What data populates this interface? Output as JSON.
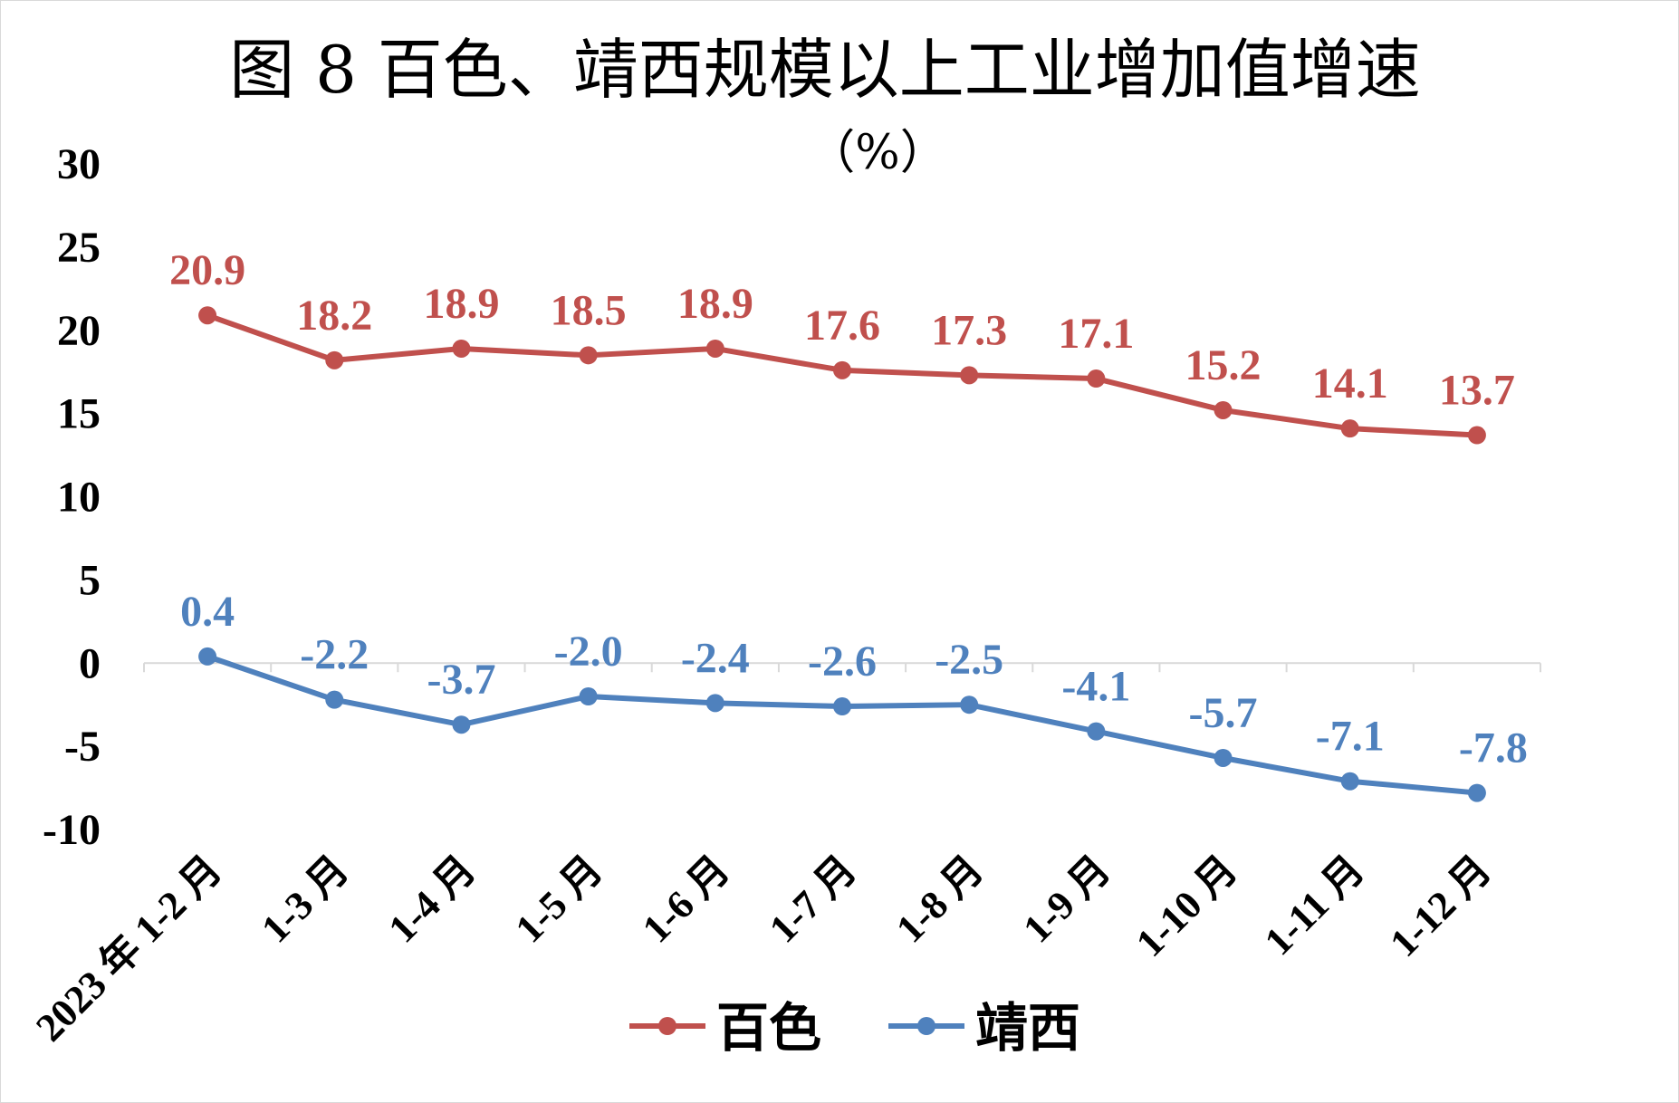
{
  "chart_data": {
    "type": "line",
    "title": "图 8  百色、靖西规模以上工业增加值增速",
    "subtitle": "（%）",
    "categories": [
      "2023 年 1-2 月",
      "1-3 月",
      "1-4 月",
      "1-5 月",
      "1-6 月",
      "1-7 月",
      "1-8 月",
      "1-9 月",
      "1-10 月",
      "1-11 月",
      "1-12 月"
    ],
    "series": [
      {
        "name": "百色",
        "color": "#c0504d",
        "values": [
          20.9,
          18.2,
          18.9,
          18.5,
          18.9,
          17.6,
          17.3,
          17.1,
          15.2,
          14.1,
          13.7
        ],
        "labels": [
          "20.9",
          "18.2",
          "18.9",
          "18.5",
          "18.9",
          "17.6",
          "17.3",
          "17.1",
          "15.2",
          "14.1",
          "13.7"
        ]
      },
      {
        "name": "靖西",
        "color": "#4f81bd",
        "values": [
          0.4,
          -2.2,
          -3.7,
          -2.0,
          -2.4,
          -2.6,
          -2.5,
          -4.1,
          -5.7,
          -7.1,
          -7.8
        ],
        "labels": [
          "0.4",
          "-2.2",
          "-3.7",
          "-2.0",
          "-2.4",
          "-2.6",
          "-2.5",
          "-4.1",
          "-5.7",
          "-7.1",
          "-7.8"
        ]
      }
    ],
    "ylim": [
      -10,
      30
    ],
    "yticks": [
      "30",
      "25",
      "20",
      "15",
      "10",
      "5",
      "0",
      "-5",
      "-10"
    ],
    "ytick_values": [
      30,
      25,
      20,
      15,
      10,
      5,
      0,
      -5,
      -10
    ],
    "grid": false,
    "legend": "bottom-center"
  }
}
